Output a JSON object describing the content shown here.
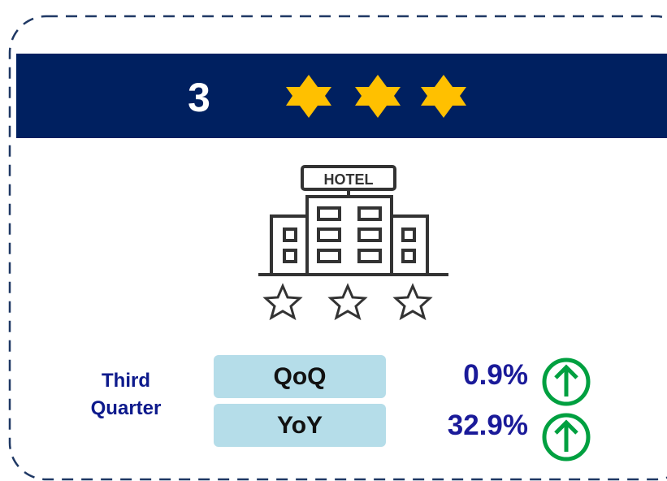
{
  "header": {
    "rating": "3"
  },
  "icon": {
    "label": "HOTEL"
  },
  "period": "Third Quarter",
  "metrics": [
    {
      "label": "QoQ",
      "value": "0.9%"
    },
    {
      "label": "YoY",
      "value": "32.9%"
    }
  ]
}
